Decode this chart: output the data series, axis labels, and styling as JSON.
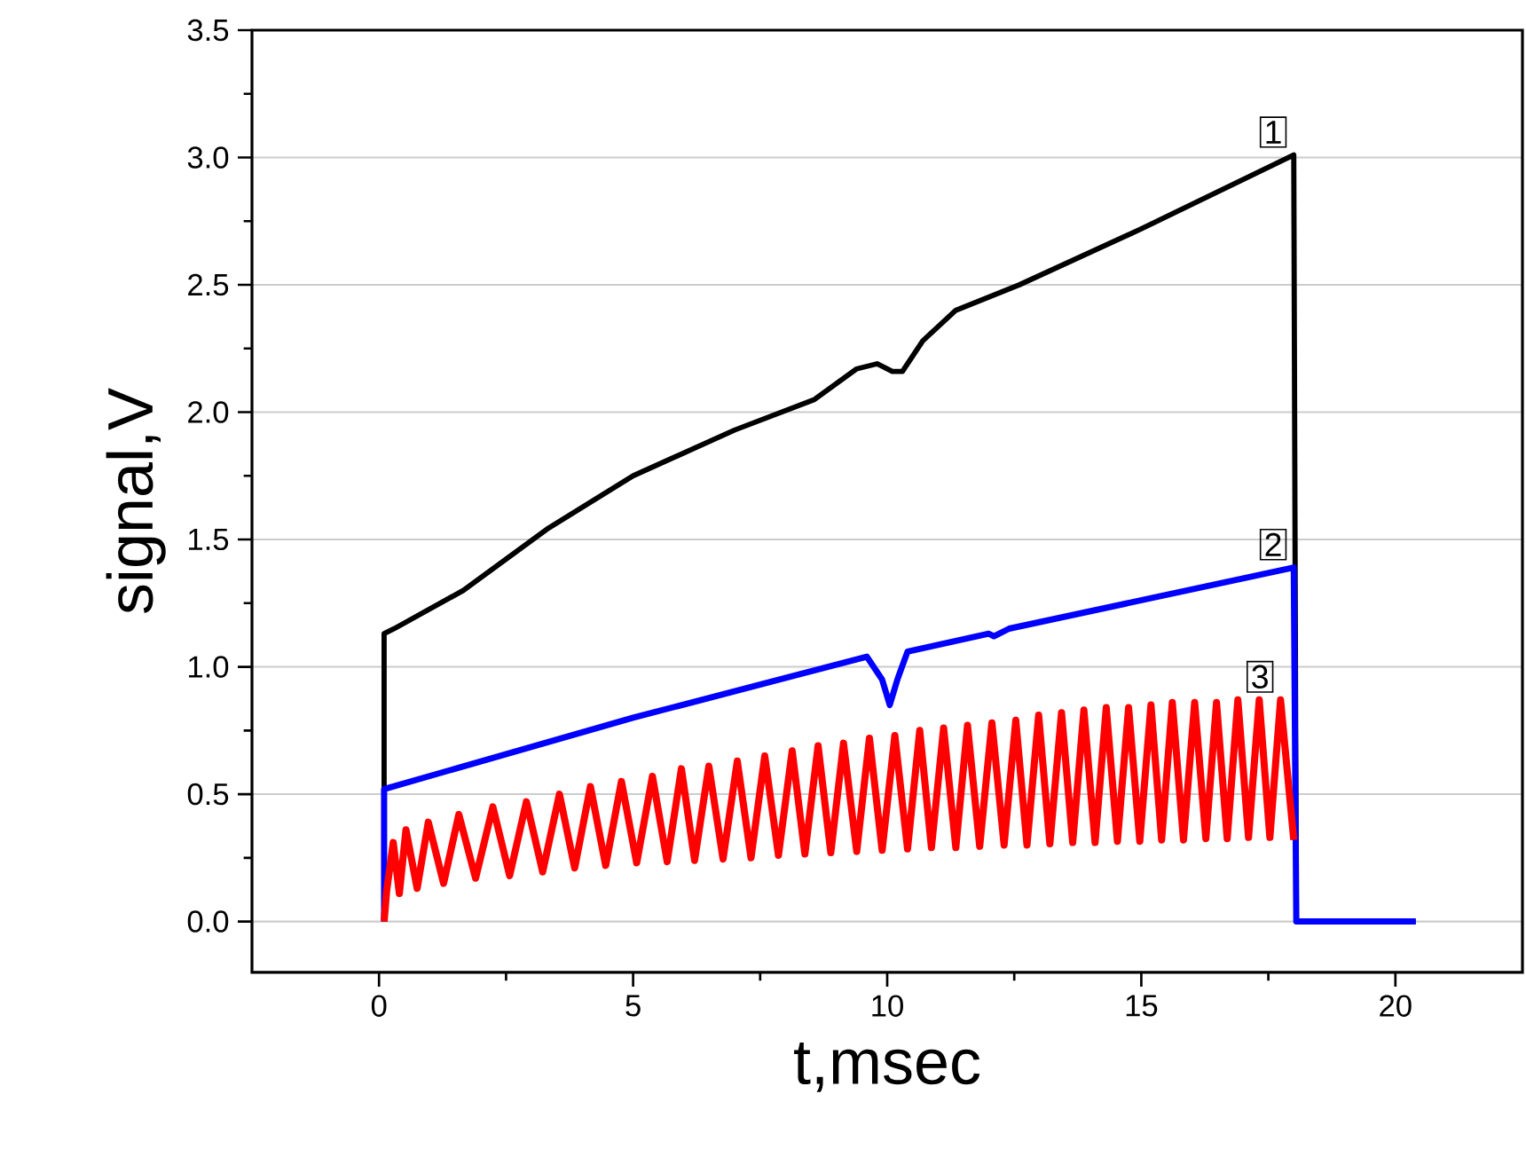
{
  "chart_data": {
    "type": "line",
    "xlabel": "t,msec",
    "ylabel": "signal,V",
    "xlim": [
      -2.5,
      22.5
    ],
    "ylim": [
      -0.2,
      3.5
    ],
    "xticks": [
      0,
      5,
      10,
      15,
      20
    ],
    "yticks": [
      {
        "value": 0,
        "label": "0.0"
      },
      {
        "value": 0.5,
        "label": "0.5"
      },
      {
        "value": 1,
        "label": "1.0"
      },
      {
        "value": 1.5,
        "label": "1.5"
      },
      {
        "value": 2,
        "label": "2.0"
      },
      {
        "value": 2.5,
        "label": "2.5"
      },
      {
        "value": 3,
        "label": "3.0"
      },
      {
        "value": 3.5,
        "label": "3.5"
      }
    ],
    "grid": "y",
    "marker": "none",
    "line_style": "solid",
    "series": [
      {
        "name": "1",
        "color": "#000000",
        "x": [
          0.1,
          0.1,
          0.3,
          1.66,
          3.3,
          5,
          7,
          8.57,
          9.4,
          9.8,
          10.1,
          10.3,
          10.7,
          11.35,
          12.6,
          15,
          18.0,
          18.05,
          20.4
        ],
        "values": [
          0,
          1.13,
          1.15,
          1.3,
          1.54,
          1.75,
          1.93,
          2.05,
          2.17,
          2.19,
          2.16,
          2.16,
          2.28,
          2.4,
          2.5,
          2.72,
          3.01,
          0,
          0
        ]
      },
      {
        "name": "2",
        "color": "#0000ff",
        "x": [
          0.1,
          0.1,
          5,
          9.6,
          9.9,
          10.05,
          10.2,
          10.4,
          12.0,
          12.1,
          12.4,
          18.0,
          18.05,
          20.4
        ],
        "values": [
          0,
          0.52,
          0.8,
          1.04,
          0.95,
          0.85,
          0.95,
          1.06,
          1.13,
          1.12,
          1.15,
          1.39,
          0,
          0
        ]
      },
      {
        "name": "3",
        "color": "#ff0000",
        "x": [
          0.1,
          0.15,
          0.28,
          0.4,
          0.53,
          0.75,
          0.97,
          1.27,
          1.57,
          1.9,
          2.24,
          2.57,
          2.9,
          3.22,
          3.55,
          3.85,
          4.16,
          4.46,
          4.77,
          5.07,
          5.38,
          5.67,
          5.95,
          6.21,
          6.49,
          6.77,
          7.05,
          7.32,
          7.59,
          7.86,
          8.13,
          8.38,
          8.64,
          8.89,
          9.14,
          9.4,
          9.65,
          9.9,
          10.15,
          10.4,
          10.64,
          10.87,
          11.11,
          11.35,
          11.58,
          11.82,
          12.06,
          12.3,
          12.53,
          12.75,
          12.98,
          13.2,
          13.43,
          13.65,
          13.87,
          14.09,
          14.31,
          14.53,
          14.75,
          14.97,
          15.19,
          15.4,
          15.61,
          15.83,
          16.05,
          16.27,
          16.48,
          16.69,
          16.9,
          17.11,
          17.32,
          17.53,
          17.74,
          18.0
        ],
        "values": [
          0,
          0.12,
          0.31,
          0.11,
          0.36,
          0.13,
          0.39,
          0.15,
          0.42,
          0.17,
          0.45,
          0.18,
          0.47,
          0.195,
          0.5,
          0.21,
          0.53,
          0.22,
          0.55,
          0.23,
          0.57,
          0.235,
          0.6,
          0.24,
          0.61,
          0.245,
          0.63,
          0.25,
          0.65,
          0.26,
          0.67,
          0.265,
          0.69,
          0.27,
          0.7,
          0.275,
          0.72,
          0.28,
          0.73,
          0.285,
          0.75,
          0.29,
          0.76,
          0.29,
          0.77,
          0.295,
          0.78,
          0.3,
          0.79,
          0.3,
          0.81,
          0.305,
          0.82,
          0.31,
          0.83,
          0.31,
          0.84,
          0.315,
          0.84,
          0.315,
          0.85,
          0.32,
          0.86,
          0.32,
          0.86,
          0.325,
          0.86,
          0.325,
          0.87,
          0.33,
          0.87,
          0.33,
          0.87,
          0.32
        ]
      }
    ]
  }
}
